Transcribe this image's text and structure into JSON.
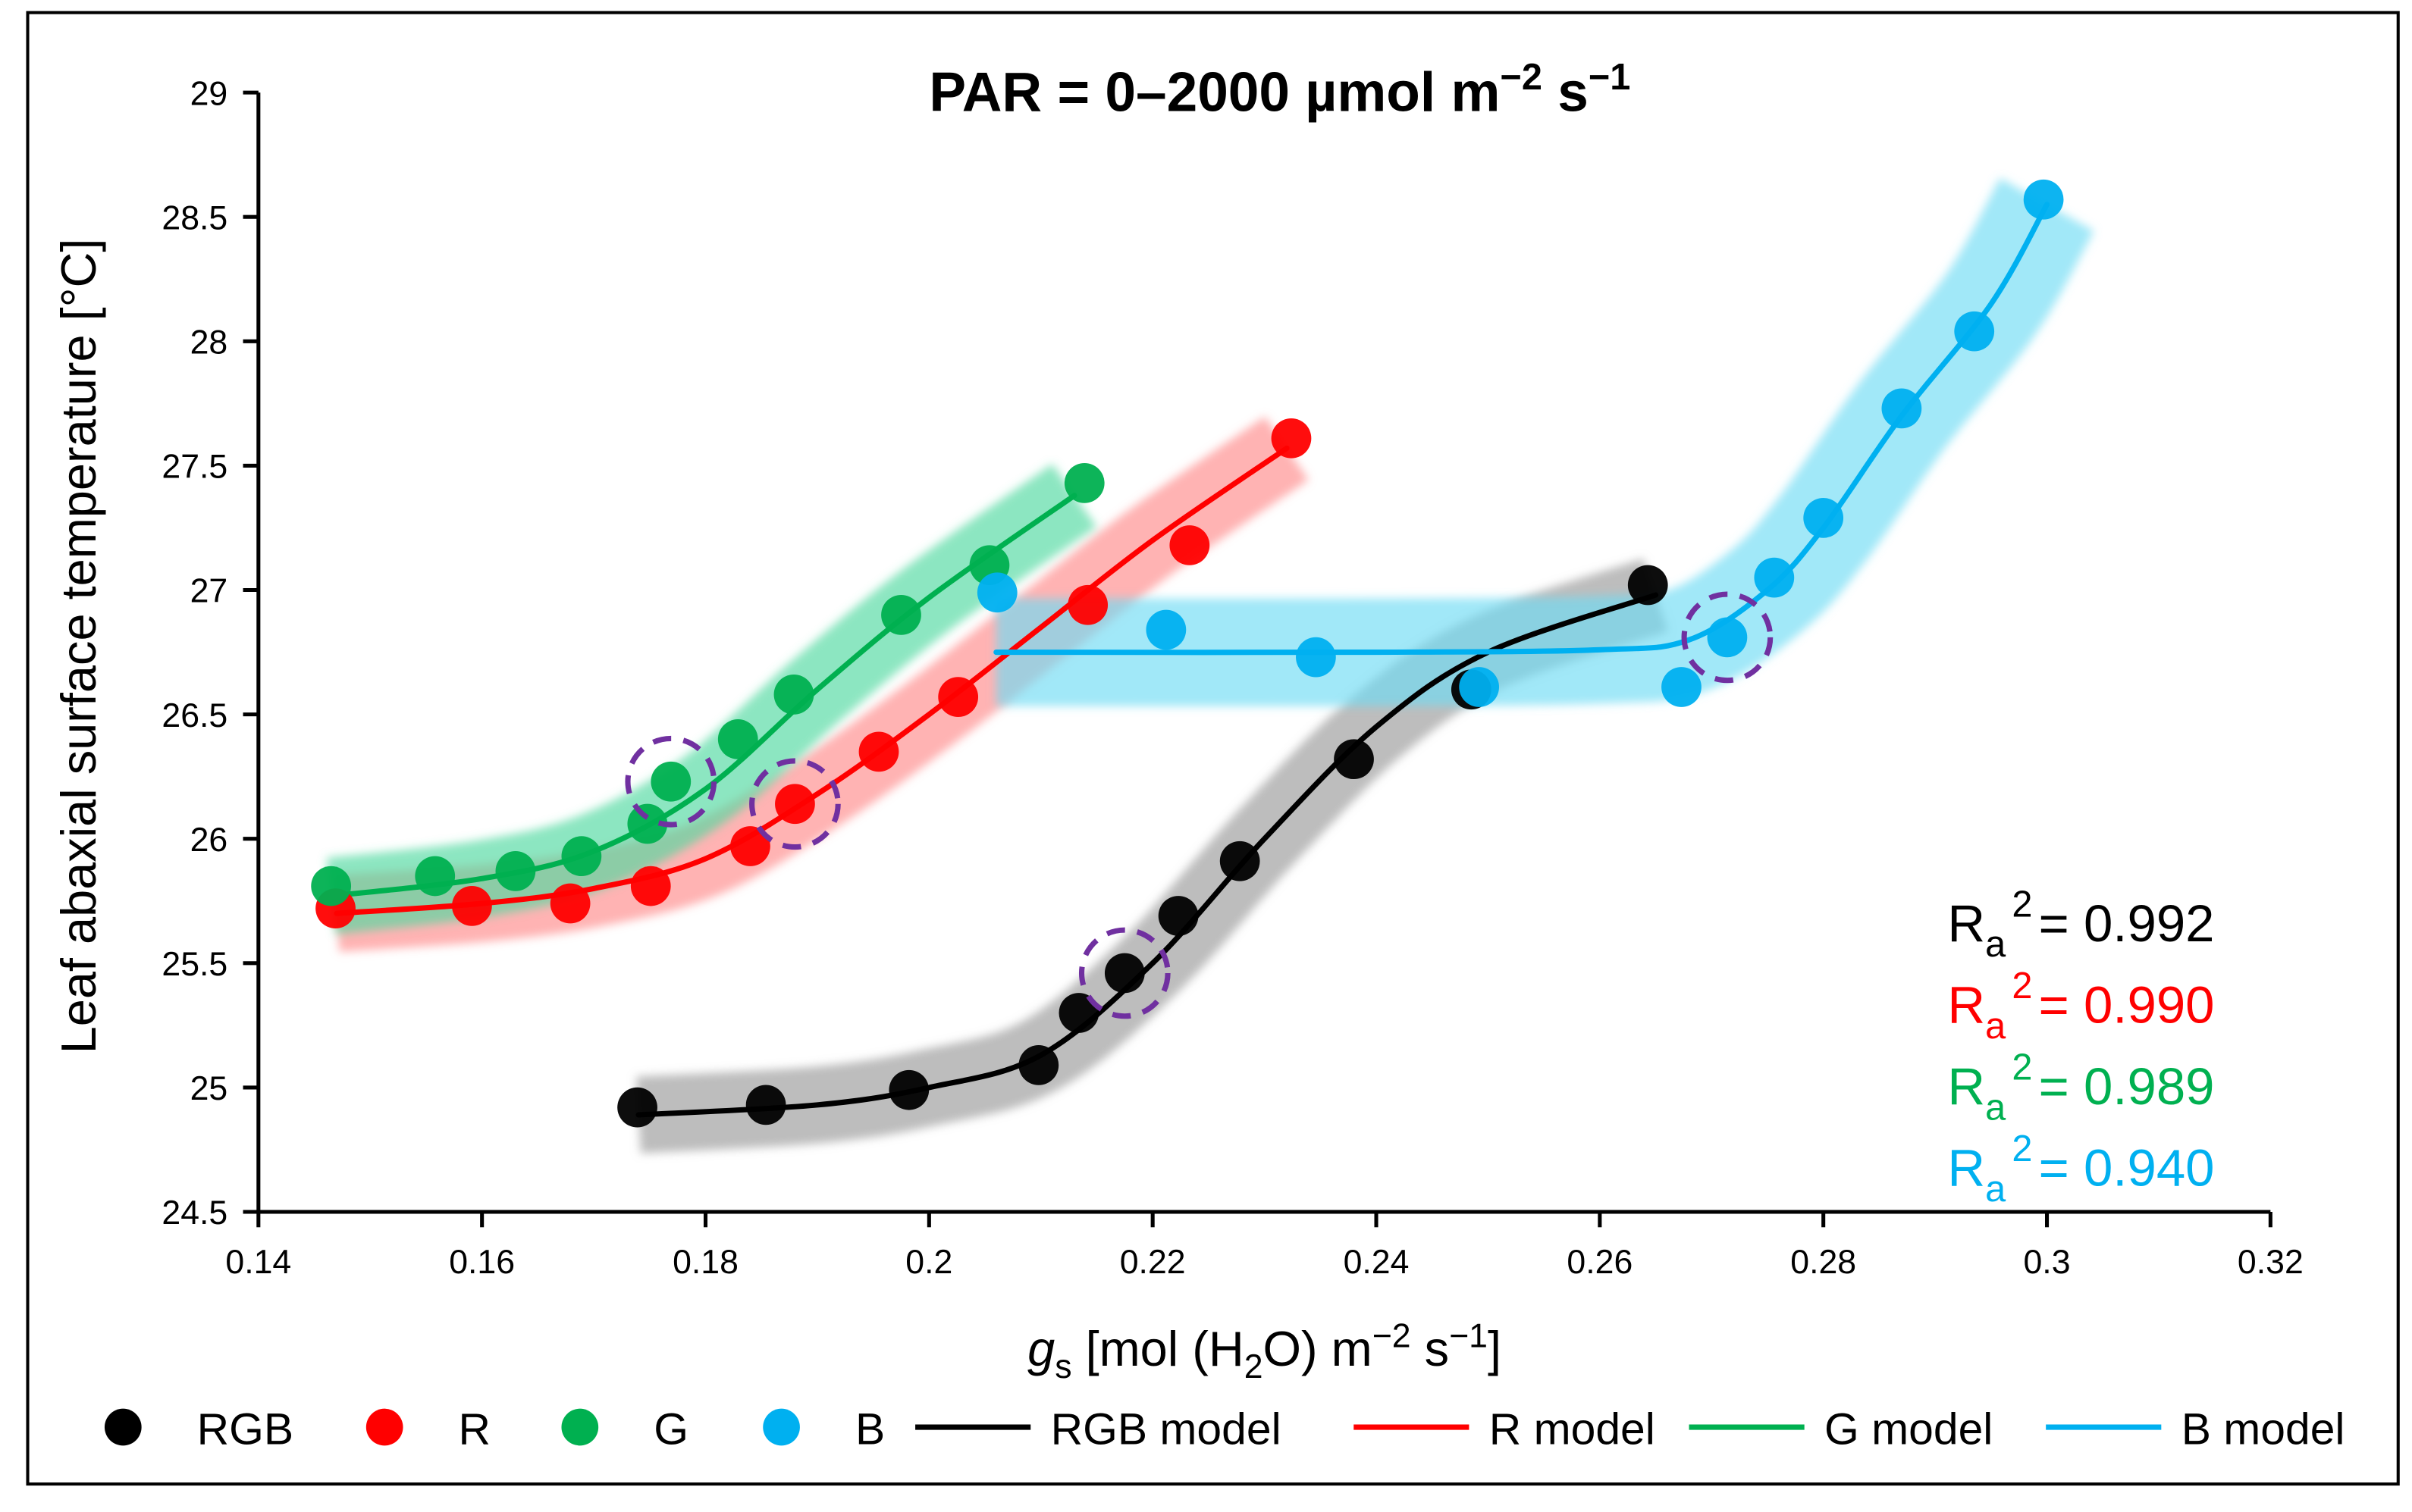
{
  "chart_data": {
    "type": "scatter",
    "title": "PAR = 0–2000 µmol m⁻² s⁻¹",
    "title_parts": {
      "main": "PAR = 0–2000 µmol m",
      "exp1": "−2",
      "mid": " s",
      "exp2": "−1"
    },
    "xlabel": "gs [mol (H2O) m−2 s−1]",
    "xlabel_parts": {
      "g": "g",
      "s": "s",
      "a": " [mol (H",
      "sub2": "2",
      "b": "O) m",
      "e1": "−2",
      "c": " s",
      "e2": "−1",
      "d": "]"
    },
    "ylabel": "Leaf abaxial surface temperature [°C]",
    "xlim": [
      0.14,
      0.32
    ],
    "ylim": [
      24.5,
      29
    ],
    "xticks": [
      "0.14",
      "0.16",
      "0.18",
      "0.2",
      "0.22",
      "0.24",
      "0.26",
      "0.28",
      "0.3",
      "0.32"
    ],
    "yticks": [
      "24.5",
      "25",
      "25.5",
      "26",
      "26.5",
      "27",
      "27.5",
      "28",
      "28.5",
      "29"
    ],
    "grid": false,
    "legend_position": "bottom",
    "series": [
      {
        "name": "RGB",
        "model_name": "RGB model",
        "color": "#000000",
        "band": "#9a9a9a",
        "x": [
          0.1739,
          0.1854,
          0.1982,
          0.2098,
          0.2134,
          0.2175,
          0.2223,
          0.2278,
          0.238,
          0.2485,
          0.2643
        ],
        "y": [
          24.92,
          24.93,
          24.99,
          25.09,
          25.3,
          25.46,
          25.69,
          25.91,
          26.32,
          26.6,
          27.02
        ],
        "model": [
          [
            0.174,
            24.89
          ],
          [
            0.19,
            24.93
          ],
          [
            0.2,
            25.0
          ],
          [
            0.21,
            25.13
          ],
          [
            0.22,
            25.5
          ],
          [
            0.23,
            26.0
          ],
          [
            0.24,
            26.45
          ],
          [
            0.25,
            26.75
          ],
          [
            0.265,
            26.98
          ]
        ],
        "highlight": [
          0.2175,
          25.46
        ],
        "r2_label": "R",
        "r2_sub": "a",
        "r2_sup": "2",
        "r2_value": "= 0.992"
      },
      {
        "name": "R",
        "model_name": "R model",
        "color": "#FF0000",
        "band": "#ff8a8a",
        "x": [
          0.1469,
          0.1591,
          0.1679,
          0.1751,
          0.184,
          0.188,
          0.1955,
          0.2026,
          0.2142,
          0.2233,
          0.2324
        ],
        "y": [
          25.72,
          25.73,
          25.74,
          25.81,
          25.97,
          26.14,
          26.35,
          26.57,
          26.94,
          27.18,
          27.61
        ],
        "model": [
          [
            0.147,
            25.7
          ],
          [
            0.16,
            25.74
          ],
          [
            0.17,
            25.8
          ],
          [
            0.18,
            25.92
          ],
          [
            0.19,
            26.18
          ],
          [
            0.2,
            26.5
          ],
          [
            0.21,
            26.85
          ],
          [
            0.22,
            27.2
          ],
          [
            0.232,
            27.57
          ]
        ],
        "highlight": [
          0.188,
          26.14
        ],
        "r2_label": "R",
        "r2_sub": "a",
        "r2_sup": "2",
        "r2_value": "= 0.990"
      },
      {
        "name": "G",
        "model_name": "G model",
        "color": "#00B050",
        "band": "#4fd8a0",
        "x": [
          0.1465,
          0.1558,
          0.163,
          0.1689,
          0.1748,
          0.1769,
          0.1829,
          0.1879,
          0.1975,
          0.2054,
          0.2139
        ],
        "y": [
          25.81,
          25.85,
          25.87,
          25.93,
          26.06,
          26.23,
          26.4,
          26.58,
          26.9,
          27.1,
          27.43
        ],
        "model": [
          [
            0.1465,
            25.77
          ],
          [
            0.16,
            25.84
          ],
          [
            0.17,
            25.95
          ],
          [
            0.18,
            26.2
          ],
          [
            0.19,
            26.6
          ],
          [
            0.2,
            26.97
          ],
          [
            0.213,
            27.38
          ]
        ],
        "highlight": [
          0.1769,
          26.23
        ],
        "r2_label": "R",
        "r2_sub": "a",
        "r2_sup": "2",
        "r2_value": "= 0.989"
      },
      {
        "name": "B",
        "model_name": "B model",
        "color": "#00B0F0",
        "band": "#6fdcf5",
        "x": [
          0.2061,
          0.2212,
          0.2346,
          0.2492,
          0.2673,
          0.2714,
          0.2756,
          0.28,
          0.287,
          0.2935,
          0.2997
        ],
        "y": [
          26.99,
          26.84,
          26.73,
          26.61,
          26.61,
          26.81,
          27.05,
          27.29,
          27.73,
          28.04,
          28.57
        ],
        "model": [
          [
            0.206,
            26.75
          ],
          [
            0.24,
            26.75
          ],
          [
            0.26,
            26.76
          ],
          [
            0.268,
            26.8
          ],
          [
            0.275,
            27.0
          ],
          [
            0.28,
            27.25
          ],
          [
            0.287,
            27.7
          ],
          [
            0.295,
            28.15
          ],
          [
            0.3,
            28.55
          ]
        ],
        "highlight": [
          0.2714,
          26.81
        ],
        "r2_label": "R",
        "r2_sub": "a",
        "r2_sup": "2",
        "r2_value": "= 0.940"
      }
    ]
  }
}
